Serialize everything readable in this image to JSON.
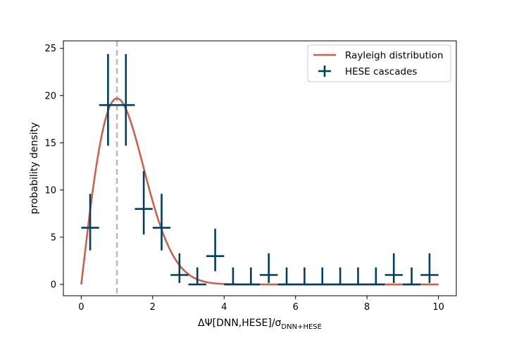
{
  "chart_data": {
    "type": "scatter",
    "title": "",
    "xlabel": "ΔΨ[DNN,HESE]/σ",
    "xlabel_sub": "DNN+HESE",
    "ylabel": "probability density",
    "xlim": [
      -0.5,
      10.5
    ],
    "ylim": [
      -1.2,
      25.8
    ],
    "xticks": [
      0,
      2,
      4,
      6,
      8,
      10
    ],
    "yticks": [
      0,
      5,
      10,
      15,
      20,
      25
    ],
    "grid": false,
    "legend_position": "top-right",
    "reference_line": {
      "x": 1.0,
      "style": "dashed",
      "color": "#bbbbbb"
    },
    "series": [
      {
        "name": "Rayleigh distribution",
        "kind": "line",
        "color": "#d0604b",
        "sigma": 1.0,
        "peak": 19.7
      },
      {
        "name": "HESE cascades",
        "kind": "errorbar",
        "color": "#00405e",
        "bin_width": 0.5,
        "x": [
          0.25,
          0.75,
          1.25,
          1.75,
          2.25,
          2.75,
          3.25,
          3.75,
          4.25,
          4.75,
          5.25,
          5.75,
          6.25,
          6.75,
          7.25,
          7.75,
          8.25,
          8.75,
          9.25,
          9.75
        ],
        "y": [
          6.0,
          19.0,
          19.0,
          8.0,
          6.0,
          1.0,
          0.0,
          3.0,
          0.0,
          0.0,
          1.0,
          0.0,
          0.0,
          0.0,
          0.0,
          0.0,
          0.0,
          1.0,
          0.0,
          1.0
        ],
        "y_lo": [
          3.6,
          14.7,
          14.7,
          5.3,
          3.6,
          0.15,
          0.0,
          1.4,
          0.0,
          0.0,
          0.15,
          0.0,
          0.0,
          0.0,
          0.0,
          0.0,
          0.0,
          0.15,
          0.0,
          0.15
        ],
        "y_hi": [
          9.6,
          24.4,
          24.4,
          12.0,
          9.6,
          3.3,
          1.8,
          5.9,
          1.8,
          1.8,
          3.3,
          1.8,
          1.8,
          1.8,
          1.8,
          1.8,
          1.8,
          3.3,
          1.8,
          3.3
        ]
      }
    ]
  }
}
